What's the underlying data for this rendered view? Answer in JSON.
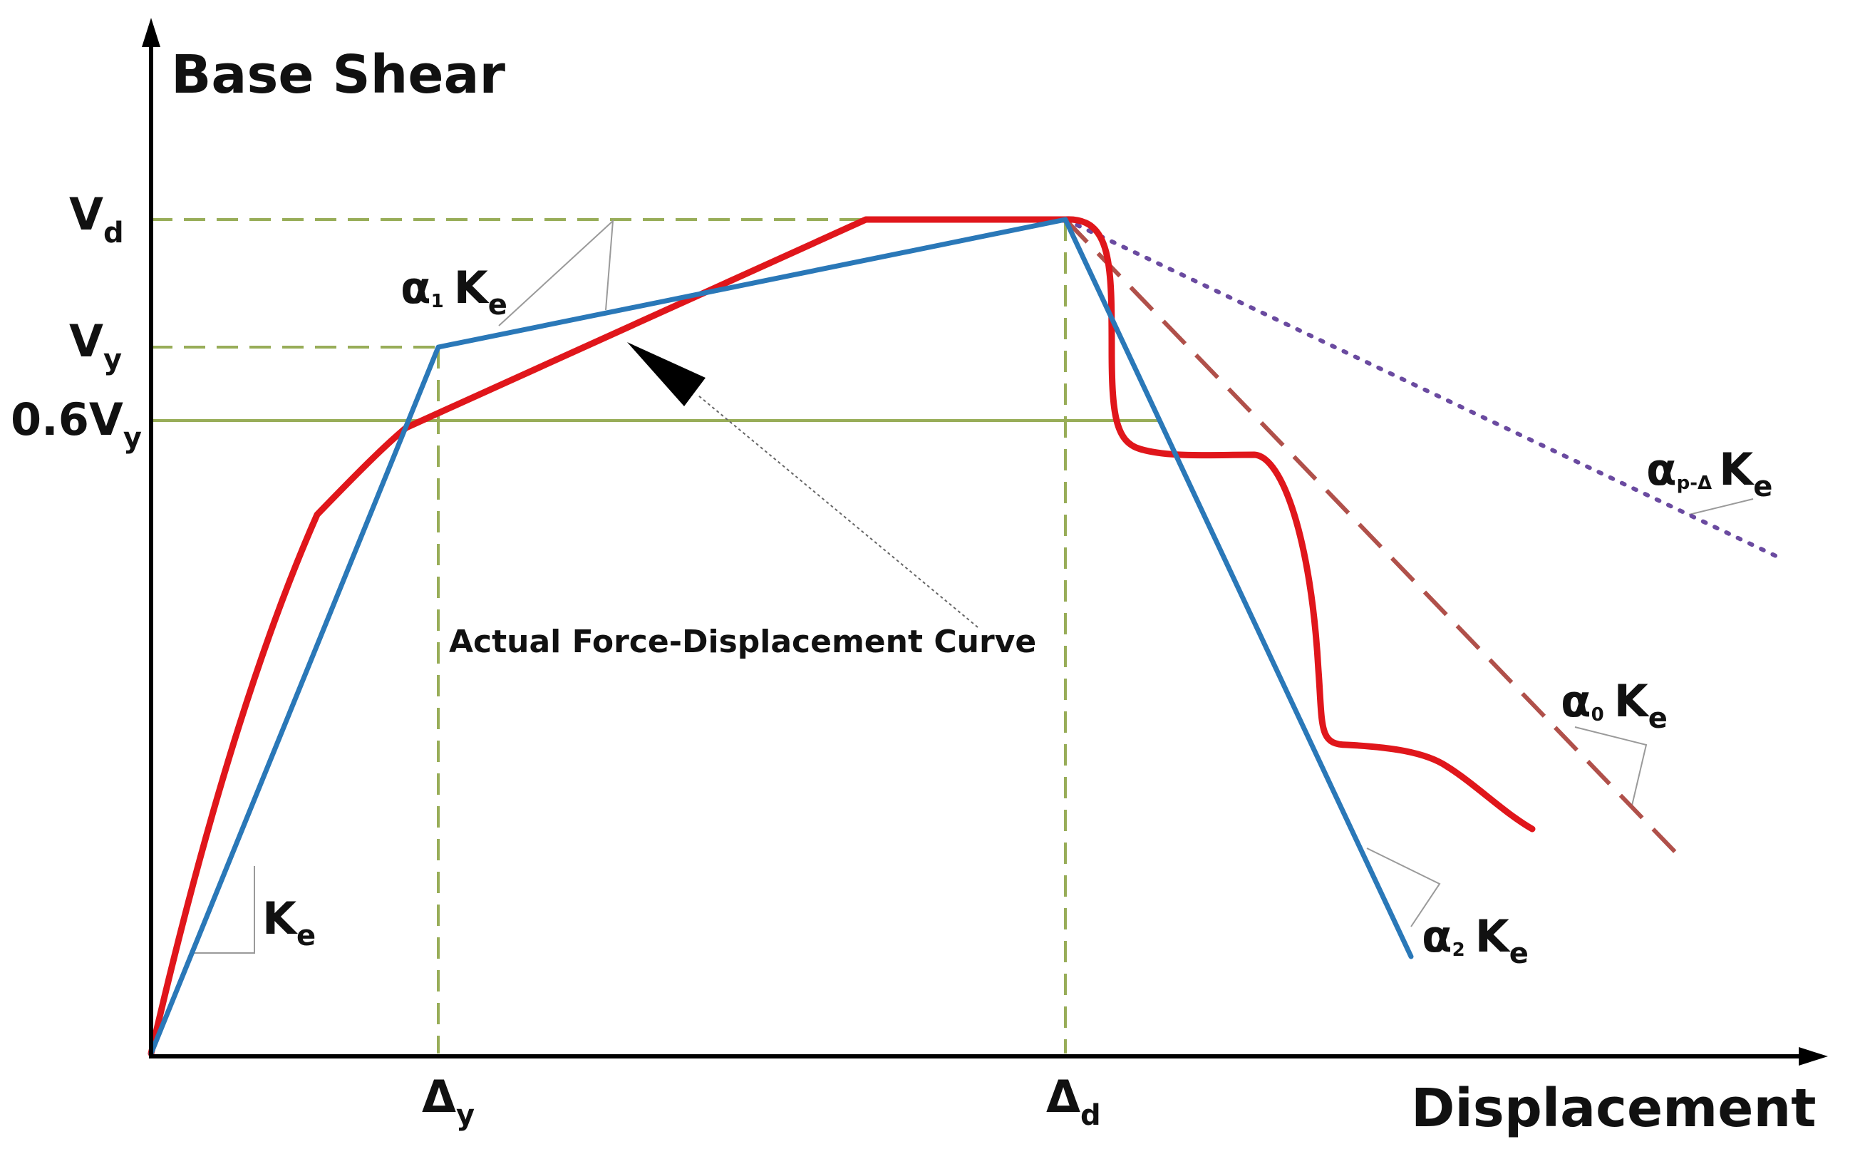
{
  "diagram": {
    "axes": {
      "y_title": "Base Shear",
      "x_title": "Displacement"
    },
    "y_labels": {
      "vd": {
        "main": "V",
        "sub": "d"
      },
      "vy": {
        "main": "V",
        "sub": "y"
      },
      "v06": {
        "main": "0.6V",
        "sub": "y"
      }
    },
    "x_labels": {
      "dy": {
        "main": "Δ",
        "sub": "y"
      },
      "dd": {
        "main": "Δ",
        "sub": "d"
      }
    },
    "annotation": "Actual Force-Displacement Curve",
    "stiffness_labels": {
      "ke": {
        "main": "K",
        "sub": "e"
      },
      "alpha1": {
        "alpha": "α",
        "alpha_sub": "1",
        "k": "K",
        "k_sub": "e"
      },
      "alpha2": {
        "alpha": "α",
        "alpha_sub": "2",
        "k": "K",
        "k_sub": "e"
      },
      "alpha0": {
        "alpha": "α",
        "alpha_sub": "0",
        "k": "K",
        "k_sub": "e"
      },
      "alpha_pd": {
        "alpha": "α",
        "alpha_sub": "p-Δ",
        "k": "K",
        "k_sub": "e"
      }
    },
    "colors": {
      "axis": "#000000",
      "idealized": "#2a78b8",
      "actual": "#e0161b",
      "guide": "#98ad58",
      "pdelta": "#6a4aa0",
      "alpha0": "#b0504a",
      "triangle": "#9a9a9a"
    }
  }
}
